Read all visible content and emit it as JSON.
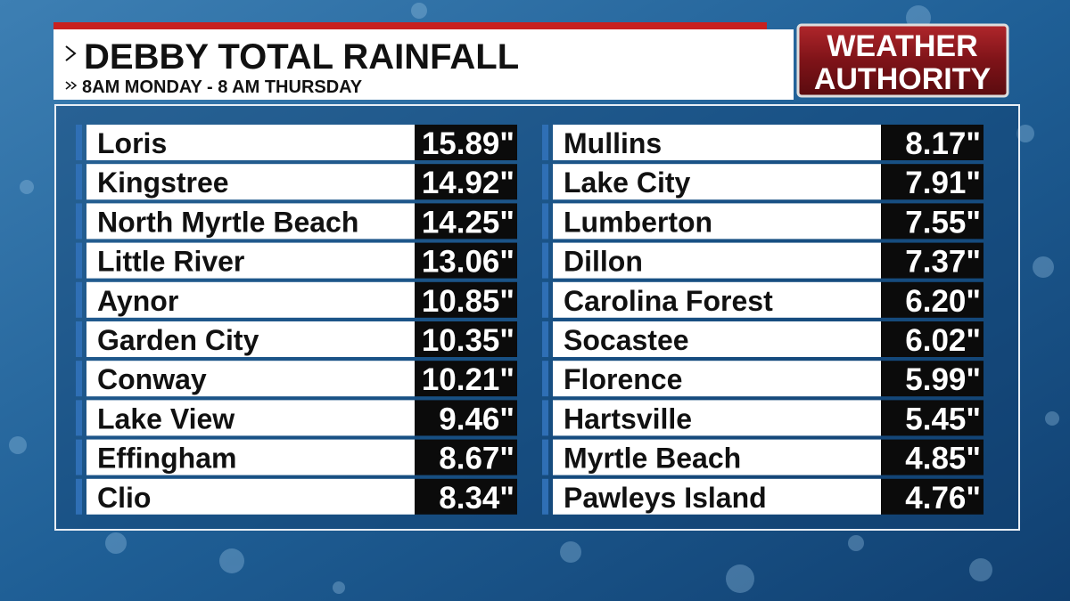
{
  "header": {
    "title": "DEBBY TOTAL RAINFALL",
    "subtitle": "8AM MONDAY - 8 AM THURSDAY"
  },
  "logo": {
    "line1": "WEATHER",
    "line2": "AUTHORITY"
  },
  "table": {
    "columns": [
      {
        "rows": [
          [
            "Loris",
            "15.89\""
          ],
          [
            "Kingstree",
            "14.92\""
          ],
          [
            "North Myrtle Beach",
            "14.25\""
          ],
          [
            "Little River",
            "13.06\""
          ],
          [
            "Aynor",
            "10.85\""
          ],
          [
            "Garden City",
            "10.35\""
          ],
          [
            "Conway",
            "10.21\""
          ],
          [
            "Lake View",
            "9.46\""
          ],
          [
            "Effingham",
            "8.67\""
          ],
          [
            "Clio",
            "8.34\""
          ]
        ]
      },
      {
        "rows": [
          [
            "Mullins",
            "8.17\""
          ],
          [
            "Lake City",
            "7.91\""
          ],
          [
            "Lumberton",
            "7.55\""
          ],
          [
            "Dillon",
            "7.37\""
          ],
          [
            "Carolina Forest",
            "6.20\""
          ],
          [
            "Socastee",
            "6.02\""
          ],
          [
            "Florence",
            "5.99\""
          ],
          [
            "Hartsville",
            "5.45\""
          ],
          [
            "Myrtle Beach",
            "4.85\""
          ],
          [
            "Pawleys Island",
            "4.76\""
          ]
        ]
      }
    ]
  }
}
